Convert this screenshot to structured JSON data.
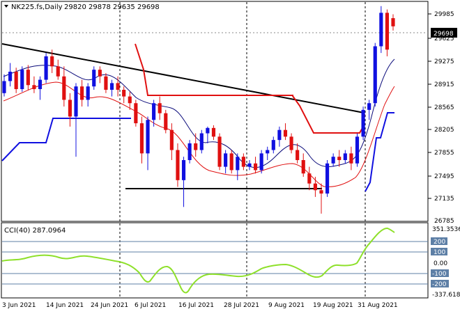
{
  "header": {
    "symbol": "NK225.fs,Daily",
    "ohlc": "29820 29878 29635 29698"
  },
  "price_axis": {
    "ticks": [
      "29985",
      "29625",
      "29275",
      "28915",
      "28565",
      "28205",
      "27855",
      "27495",
      "27135",
      "26785"
    ],
    "current_price_label": "29698"
  },
  "indicator": {
    "label": "CCI(40) 287.0964",
    "ticks": [
      "351.3536",
      "200",
      "100",
      "0.00",
      "-100",
      "-200",
      "-337.618"
    ]
  },
  "time_axis": {
    "labels": [
      "3 Jun 2021",
      "14 Jun 2021",
      "24 Jun 2021",
      "6 Jul 2021",
      "16 Jul 2021",
      "28 Jul 2021",
      "9 Aug 2021",
      "19 Aug 2021",
      "31 Aug 2021"
    ]
  },
  "colors": {
    "bull": "#1010e0",
    "bear": "#e01010",
    "trendline": "#000000",
    "ma_fast": "#0a0a7a",
    "ma_slow": "#e01010",
    "cci_line": "#8ee02a",
    "cci_level": "#5d7fa6",
    "badge": "#000000"
  },
  "chart_data": {
    "type": "candlestick",
    "symbol": "NK225.fs",
    "timeframe": "Daily",
    "ylim": [
      26785,
      30060
    ],
    "series": [
      {
        "values": [
          [
            28700,
            28980,
            28650,
            28880
          ],
          [
            28880,
            29150,
            28800,
            29020
          ],
          [
            29020,
            29080,
            28700,
            28760
          ],
          [
            28760,
            29100,
            28720,
            29050
          ],
          [
            29050,
            29120,
            28750,
            28820
          ],
          [
            28820,
            28950,
            28700,
            28760
          ],
          [
            28760,
            28950,
            28600,
            28900
          ],
          [
            28900,
            29300,
            28850,
            29250
          ],
          [
            29250,
            29350,
            29000,
            29100
          ],
          [
            29100,
            29200,
            28900,
            28950
          ],
          [
            28950,
            29100,
            28500,
            28600
          ],
          [
            28600,
            28700,
            28200,
            28350
          ],
          [
            28350,
            28850,
            27750,
            28800
          ],
          [
            28800,
            28900,
            28500,
            28600
          ],
          [
            28600,
            28850,
            28500,
            28800
          ],
          [
            28800,
            29100,
            28750,
            29050
          ],
          [
            29050,
            29100,
            28850,
            28950
          ],
          [
            28950,
            29000,
            28700,
            28750
          ],
          [
            28750,
            28900,
            28650,
            28850
          ],
          [
            28850,
            28950,
            28650,
            28750
          ],
          [
            28750,
            28800,
            28550,
            28650
          ],
          [
            28650,
            28720,
            28450,
            28550
          ],
          [
            28550,
            28600,
            28200,
            28250
          ],
          [
            28250,
            28350,
            27650,
            27800
          ],
          [
            27800,
            28350,
            27550,
            28300
          ],
          [
            28300,
            28600,
            28200,
            28550
          ],
          [
            28550,
            28650,
            28300,
            28400
          ],
          [
            28400,
            28450,
            28100,
            28150
          ],
          [
            28150,
            28250,
            27700,
            27850
          ],
          [
            27850,
            27950,
            27300,
            27400
          ],
          [
            27400,
            27750,
            27000,
            27700
          ],
          [
            27700,
            28000,
            27650,
            27950
          ],
          [
            27950,
            28100,
            27750,
            27850
          ],
          [
            27850,
            28150,
            27800,
            28100
          ],
          [
            28100,
            28200,
            27950,
            28180
          ],
          [
            28180,
            28220,
            28000,
            28050
          ],
          [
            28050,
            28100,
            27550,
            27600
          ],
          [
            27600,
            27850,
            27500,
            27800
          ],
          [
            27800,
            27850,
            27500,
            27550
          ],
          [
            27550,
            27800,
            27400,
            27750
          ],
          [
            27750,
            27800,
            27550,
            27600
          ],
          [
            27600,
            27700,
            27550,
            27650
          ],
          [
            27650,
            27750,
            27500,
            27550
          ],
          [
            27550,
            27850,
            27500,
            27800
          ],
          [
            27800,
            27900,
            27700,
            27850
          ],
          [
            27850,
            28050,
            27800,
            28000
          ],
          [
            28000,
            28200,
            27900,
            28150
          ],
          [
            28150,
            28250,
            28000,
            28050
          ],
          [
            28050,
            28100,
            27800,
            27850
          ],
          [
            27850,
            27950,
            27650,
            27700
          ],
          [
            27700,
            27800,
            27450,
            27500
          ],
          [
            27500,
            27600,
            27250,
            27350
          ],
          [
            27350,
            27450,
            27150,
            27250
          ],
          [
            27250,
            27350,
            26900,
            27200
          ],
          [
            27200,
            27700,
            27150,
            27650
          ],
          [
            27650,
            27800,
            27600,
            27750
          ],
          [
            27750,
            27850,
            27600,
            27700
          ],
          [
            27700,
            27850,
            27650,
            27800
          ],
          [
            27800,
            27900,
            27550,
            27650
          ],
          [
            27650,
            28100,
            27600,
            28050
          ],
          [
            28050,
            28500,
            28000,
            28450
          ],
          [
            28450,
            28600,
            28300,
            28550
          ],
          [
            28550,
            29450,
            28500,
            29400
          ],
          [
            29400,
            30000,
            29300,
            29900
          ],
          [
            29900,
            29950,
            29250,
            29350
          ],
          [
            29820,
            29878,
            29635,
            29698
          ]
        ]
      }
    ]
  }
}
